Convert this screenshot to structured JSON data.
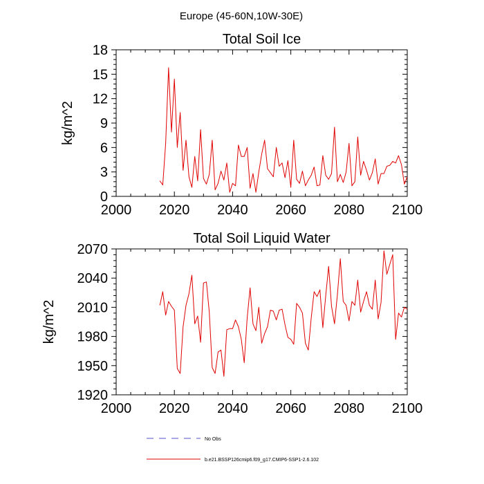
{
  "figure": {
    "title": "Europe (45-60N,10W-30E)",
    "legend": {
      "placement": "bottom",
      "items": [
        {
          "label": "No Obs",
          "color": "#5050c8",
          "style": "dashed"
        },
        {
          "label": "b.e21.BSSP126cmip6.f09_g17.CMIP6-SSP1-2.6.102",
          "color": "#e00000",
          "style": "solid"
        }
      ]
    }
  },
  "chart_data": [
    {
      "type": "line",
      "title": "Total Soil Ice",
      "ylabel": "kg/m^2",
      "xlabel": "",
      "xlim": [
        2000,
        2100
      ],
      "ylim": [
        0,
        18
      ],
      "xticks": [
        2000,
        2020,
        2040,
        2060,
        2080,
        2100
      ],
      "yticks": [
        0,
        3,
        6,
        9,
        12,
        15,
        18
      ],
      "grid": false,
      "series": [
        {
          "color": "#e00000",
          "x": [
            2015,
            2016,
            2017,
            2018,
            2019,
            2020,
            2021,
            2022,
            2023,
            2024,
            2025,
            2026,
            2027,
            2028,
            2029,
            2030,
            2031,
            2032,
            2033,
            2034,
            2035,
            2036,
            2037,
            2038,
            2039,
            2040,
            2041,
            2042,
            2043,
            2044,
            2045,
            2046,
            2047,
            2048,
            2049,
            2050,
            2051,
            2052,
            2053,
            2054,
            2055,
            2056,
            2057,
            2058,
            2059,
            2060,
            2061,
            2062,
            2063,
            2064,
            2065,
            2066,
            2067,
            2068,
            2069,
            2070,
            2071,
            2072,
            2073,
            2074,
            2075,
            2076,
            2077,
            2078,
            2079,
            2080,
            2081,
            2082,
            2083,
            2084,
            2085,
            2086,
            2087,
            2088,
            2089,
            2090,
            2091,
            2092,
            2093,
            2094,
            2095,
            2096,
            2097,
            2098,
            2099,
            2100
          ],
          "values": [
            1.9,
            1.4,
            6.5,
            15.8,
            7.9,
            14.4,
            6.0,
            10.3,
            3.2,
            6.9,
            2.4,
            1.1,
            4.9,
            1.9,
            8.2,
            2.2,
            1.5,
            2.7,
            6.9,
            0.8,
            1.6,
            3.1,
            2.0,
            4.1,
            0.5,
            1.6,
            1.3,
            6.3,
            4.9,
            4.9,
            6.0,
            1.0,
            2.8,
            0.5,
            3.0,
            5.2,
            6.9,
            3.4,
            2.9,
            2.4,
            6.0,
            3.7,
            4.1,
            2.3,
            4.4,
            1.1,
            6.9,
            2.1,
            1.6,
            3.1,
            1.3,
            2.0,
            2.6,
            3.6,
            1.3,
            1.4,
            5.0,
            2.6,
            2.1,
            2.8,
            8.5,
            1.8,
            2.7,
            1.7,
            3.0,
            6.5,
            1.3,
            1.8,
            7.3,
            2.6,
            4.3,
            3.2,
            2.0,
            2.9,
            4.6,
            1.5,
            2.8,
            2.8,
            3.7,
            3.8,
            4.3,
            4.1,
            5.0,
            3.9,
            1.5,
            2.4
          ]
        }
      ]
    },
    {
      "type": "line",
      "title": "Total Soil Liquid Water",
      "ylabel": "kg/m^2",
      "xlabel": "",
      "xlim": [
        2000,
        2100
      ],
      "ylim": [
        1920,
        2070
      ],
      "xticks": [
        2000,
        2020,
        2040,
        2060,
        2080,
        2100
      ],
      "yticks": [
        1920,
        1950,
        1980,
        2010,
        2040,
        2070
      ],
      "grid": false,
      "series": [
        {
          "color": "#e00000",
          "x": [
            2015,
            2016,
            2017,
            2018,
            2019,
            2020,
            2021,
            2022,
            2023,
            2024,
            2025,
            2026,
            2027,
            2028,
            2029,
            2030,
            2031,
            2032,
            2033,
            2034,
            2035,
            2036,
            2037,
            2038,
            2039,
            2040,
            2041,
            2042,
            2043,
            2044,
            2045,
            2046,
            2047,
            2048,
            2049,
            2050,
            2051,
            2052,
            2053,
            2054,
            2055,
            2056,
            2057,
            2058,
            2059,
            2060,
            2061,
            2062,
            2063,
            2064,
            2065,
            2066,
            2067,
            2068,
            2069,
            2070,
            2071,
            2072,
            2073,
            2074,
            2075,
            2076,
            2077,
            2078,
            2079,
            2080,
            2081,
            2082,
            2083,
            2084,
            2085,
            2086,
            2087,
            2088,
            2089,
            2090,
            2091,
            2092,
            2093,
            2094,
            2095,
            2096,
            2097,
            2098,
            2099,
            2100
          ],
          "values": [
            2012,
            2026,
            2002,
            2016,
            2011,
            2007,
            1947,
            1942,
            1990,
            2012,
            2024,
            2043,
            1993,
            2001,
            1974,
            2035,
            2036,
            2005,
            1948,
            1942,
            1964,
            1966,
            1939,
            1987,
            1988,
            1988,
            1997,
            1990,
            1977,
            1953,
            1999,
            2030,
            1993,
            1986,
            2010,
            1973,
            1983,
            1990,
            2007,
            2006,
            1997,
            2007,
            2008,
            1992,
            1979,
            1977,
            1972,
            2014,
            2010,
            2004,
            1973,
            1966,
            1999,
            2026,
            2021,
            2028,
            1989,
            2022,
            2052,
            2011,
            1993,
            2023,
            2060,
            2016,
            2012,
            1996,
            2016,
            2012,
            2038,
            2005,
            2016,
            2026,
            2012,
            2008,
            2038,
            1998,
            2015,
            2068,
            2044,
            2054,
            2064,
            1977,
            2004,
            2000,
            2010,
            2008
          ]
        }
      ]
    }
  ]
}
